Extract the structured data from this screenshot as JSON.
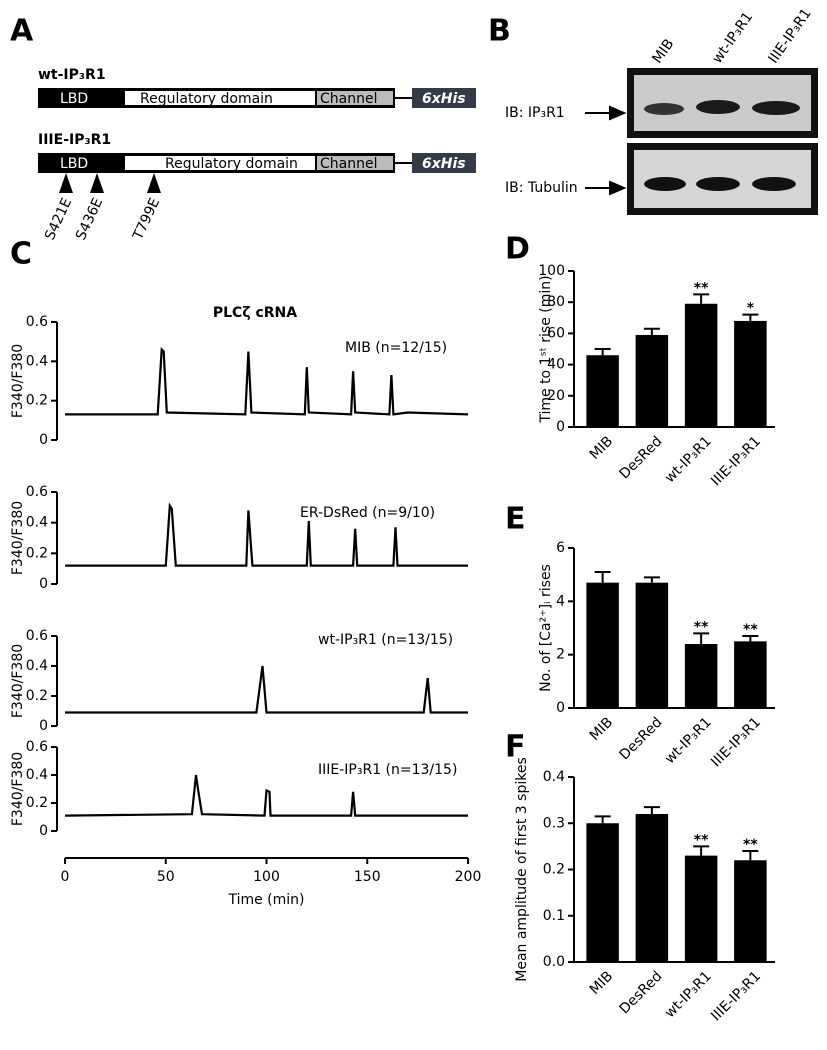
{
  "panel_a": {
    "label": "A",
    "constructs": [
      {
        "name": "wt-IP₃R1",
        "domains": [
          "LBD",
          "Regulatory domain",
          "Channel",
          "6xHis"
        ]
      },
      {
        "name": "IIIE-IP₃R1",
        "domains": [
          "LBD",
          "Regulatory domain",
          "Channel",
          "6xHis"
        ],
        "mutations": [
          "S421E",
          "S436E",
          "T799E"
        ]
      }
    ]
  },
  "panel_b": {
    "label": "B",
    "lanes": [
      "MIB",
      "wt-IP₃R1",
      "IIIE-IP₃R1"
    ],
    "blots": [
      "IB: IP₃R1",
      "IB: Tubulin"
    ]
  },
  "chart_data": [
    {
      "type": "line",
      "panel_label": "C",
      "title": "PLCζ cRNA",
      "annotation": "MIB (n=12/15)",
      "y_label": "F340/F380",
      "color": "#000000",
      "x": [
        0,
        46,
        48,
        49,
        50.5,
        89.5,
        91,
        92.5,
        119,
        120,
        121,
        142,
        143,
        144,
        161,
        162,
        163,
        170,
        200
      ],
      "values": [
        0.13,
        0.13,
        0.46,
        0.45,
        0.14,
        0.13,
        0.45,
        0.14,
        0.13,
        0.37,
        0.14,
        0.13,
        0.35,
        0.14,
        0.13,
        0.33,
        0.13,
        0.14,
        0.13
      ],
      "xlim": [
        0,
        200
      ],
      "ylim": [
        0,
        0.6
      ],
      "yticks": [
        0,
        0.2,
        0.4,
        0.6
      ]
    },
    {
      "type": "line",
      "annotation": "ER-DsRed (n=9/10)",
      "y_label": "F340/F380",
      "color": "#000000",
      "x": [
        0,
        50,
        52,
        53,
        55,
        90,
        91,
        93,
        120,
        121,
        122,
        143,
        144,
        145,
        163,
        164,
        165,
        200
      ],
      "values": [
        0.12,
        0.12,
        0.51,
        0.49,
        0.12,
        0.12,
        0.48,
        0.12,
        0.12,
        0.41,
        0.12,
        0.12,
        0.36,
        0.12,
        0.12,
        0.37,
        0.12,
        0.12
      ],
      "xlim": [
        0,
        200
      ],
      "ylim": [
        0,
        0.6
      ],
      "yticks": [
        0,
        0.2,
        0.4,
        0.6
      ]
    },
    {
      "type": "line",
      "annotation": "wt-IP₃R1 (n=13/15)",
      "y_label": "F340/F380",
      "color": "#000000",
      "x": [
        0,
        95,
        98,
        100,
        178,
        180,
        181.5,
        200
      ],
      "values": [
        0.09,
        0.09,
        0.4,
        0.09,
        0.09,
        0.32,
        0.09,
        0.09
      ],
      "xlim": [
        0,
        200
      ],
      "ylim": [
        0,
        0.6
      ],
      "yticks": [
        0,
        0.2,
        0.4,
        0.6
      ]
    },
    {
      "type": "line",
      "annotation": "IIIE-IP₃R1 (n=13/15)",
      "y_label": "F340/F380",
      "x_label": "Time (min)",
      "color": "#000000",
      "x": [
        0,
        63,
        65,
        66,
        68,
        99,
        100,
        101.5,
        102,
        142,
        143,
        144,
        200
      ],
      "values": [
        0.11,
        0.12,
        0.4,
        0.3,
        0.12,
        0.11,
        0.29,
        0.28,
        0.11,
        0.11,
        0.28,
        0.11,
        0.11
      ],
      "xlim": [
        0,
        200
      ],
      "xticks": [
        0,
        50,
        100,
        150,
        200
      ],
      "ylim": [
        0,
        0.6
      ],
      "yticks": [
        0,
        0.2,
        0.4,
        0.6
      ]
    },
    {
      "type": "bar",
      "panel_label": "D",
      "y_label": "Time to 1ˢᵗ rise (min)",
      "color": "#000000",
      "categories": [
        "MIB",
        "DesRed",
        "wt-IP₃R1",
        "IIIE-IP₃R1"
      ],
      "values": [
        46,
        59,
        79,
        68
      ],
      "errors": [
        4,
        4,
        6,
        4
      ],
      "significance": [
        null,
        null,
        "**",
        "*"
      ],
      "ylim": [
        0,
        100
      ],
      "yticks": [
        0,
        20,
        40,
        60,
        80,
        100
      ]
    },
    {
      "type": "bar",
      "panel_label": "E",
      "y_label": "No. of [Ca²⁺]ᵢ rises",
      "color": "#000000",
      "categories": [
        "MIB",
        "DesRed",
        "wt-IP₃R1",
        "IIIE-IP₃R1"
      ],
      "values": [
        4.7,
        4.7,
        2.4,
        2.5
      ],
      "errors": [
        0.4,
        0.2,
        0.4,
        0.2
      ],
      "significance": [
        null,
        null,
        "**",
        "**"
      ],
      "ylim": [
        0,
        6
      ],
      "yticks": [
        0,
        2,
        4,
        6
      ]
    },
    {
      "type": "bar",
      "panel_label": "F",
      "y_label": "Mean amplitude of first 3 spikes",
      "color": "#000000",
      "categories": [
        "MIB",
        "DesRed",
        "wt-IP₃R1",
        "IIIE-IP₃R1"
      ],
      "values": [
        0.3,
        0.32,
        0.23,
        0.22
      ],
      "errors": [
        0.015,
        0.015,
        0.02,
        0.02
      ],
      "significance": [
        null,
        null,
        "**",
        "**"
      ],
      "ylim": [
        0,
        0.4
      ],
      "yticks": [
        {
          "value": 0,
          "label": "0.0"
        },
        0.1,
        0.2,
        0.3,
        0.4
      ]
    }
  ]
}
